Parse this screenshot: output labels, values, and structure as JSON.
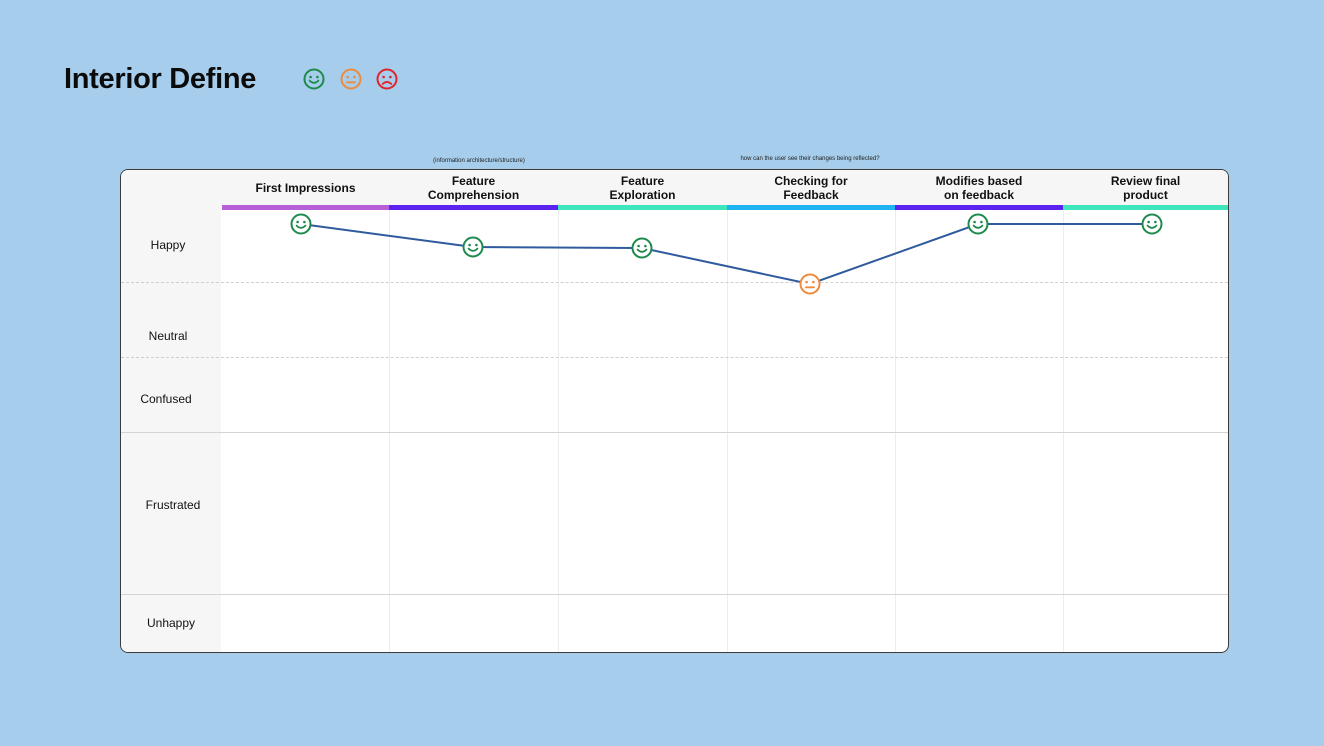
{
  "title": "Interior Define",
  "legend": [
    {
      "icon": "happy-face-icon",
      "color": "#1e8a4c"
    },
    {
      "icon": "neutral-face-icon",
      "color": "#ef8a3a"
    },
    {
      "icon": "sad-face-icon",
      "color": "#e3232b"
    }
  ],
  "notes": {
    "feature_comprehension": "(information architecture/structure)",
    "checking_feedback": "how can the user see their changes being reflected?"
  },
  "columns": [
    {
      "label": "First Impressions",
      "color": "#b65fd6"
    },
    {
      "label": "Feature\nComprehension",
      "color": "#5b22f0"
    },
    {
      "label": "Feature\nExploration",
      "color": "#3fe6bd"
    },
    {
      "label": "Checking for\nFeedback",
      "color": "#1fb3f2"
    },
    {
      "label": "Modifies based\non feedback",
      "color": "#5b22f0"
    },
    {
      "label": "Review final\nproduct",
      "color": "#3fe6bd"
    }
  ],
  "rows": [
    "Happy",
    "Neutral",
    "Confused",
    "Frustrated",
    "Unhappy"
  ],
  "journey": {
    "line_color": "#2f5b9e",
    "points": [
      {
        "stage": "First Impressions",
        "emotion": "Happy",
        "face": "happy"
      },
      {
        "stage": "Feature Comprehension",
        "emotion": "Happy",
        "face": "happy"
      },
      {
        "stage": "Feature Exploration",
        "emotion": "Happy",
        "face": "happy"
      },
      {
        "stage": "Checking for Feedback",
        "emotion": "Neutral",
        "face": "neutral"
      },
      {
        "stage": "Modifies based on feedback",
        "emotion": "Happy",
        "face": "happy"
      },
      {
        "stage": "Review final product",
        "emotion": "Happy",
        "face": "happy"
      }
    ]
  }
}
